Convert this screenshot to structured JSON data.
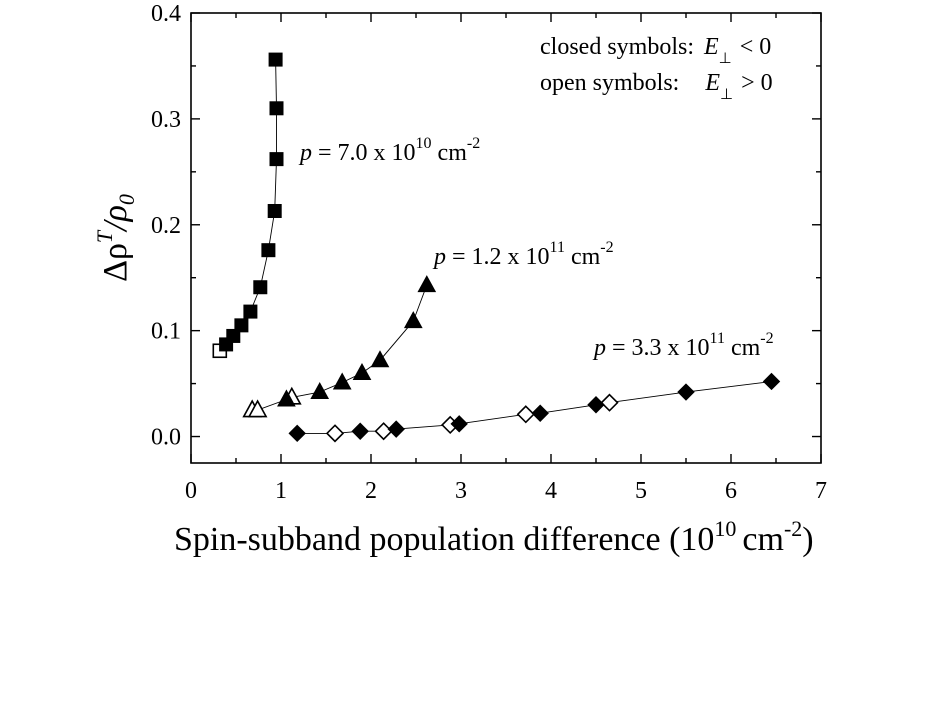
{
  "chart_data": {
    "type": "scatter",
    "xlabel": "Spin-subband population difference (10",
    "xlabel_exp": "10",
    "xlabel_unit": "cm",
    "xlabel_unit_exp": "-2",
    "xlabel_tail": ")",
    "ylabel_main": "Δρ",
    "ylabel_sup": "T",
    "ylabel_den": "/ρ",
    "ylabel_sub": "0",
    "xlim": [
      0,
      7
    ],
    "ylim": [
      -0.025,
      0.4
    ],
    "x_ticks": [
      0,
      1,
      2,
      3,
      4,
      5,
      6,
      7
    ],
    "x_tick_labels": [
      "0",
      "1",
      "2",
      "3",
      "4",
      "5",
      "6",
      "7"
    ],
    "y_ticks": [
      0.0,
      0.1,
      0.2,
      0.3,
      0.4
    ],
    "y_tick_labels": [
      "0.0",
      "0.1",
      "0.2",
      "0.3",
      "0.4"
    ],
    "legend": {
      "line1_prefix": "closed symbols:",
      "line1_symbol": "E",
      "line1_suffix": "< 0",
      "line2_prefix": "open symbols:",
      "line2_symbol": "E",
      "line2_suffix": "> 0",
      "perp": "⊥"
    },
    "series": [
      {
        "annotation": {
          "p": "p",
          "text": " = 7.0 x 10",
          "exp": "10",
          "unit": " cm",
          "unit_exp": "-2"
        },
        "marker": "square",
        "closed": [
          [
            0.39,
            0.087
          ],
          [
            0.47,
            0.095
          ],
          [
            0.56,
            0.105
          ],
          [
            0.66,
            0.118
          ],
          [
            0.77,
            0.141
          ],
          [
            0.86,
            0.176
          ],
          [
            0.93,
            0.213
          ],
          [
            0.95,
            0.262
          ],
          [
            0.95,
            0.31
          ],
          [
            0.94,
            0.356
          ]
        ],
        "open": [
          [
            0.32,
            0.081
          ]
        ],
        "line": [
          [
            0.32,
            0.081
          ],
          [
            0.39,
            0.087
          ],
          [
            0.47,
            0.095
          ],
          [
            0.56,
            0.105
          ],
          [
            0.66,
            0.118
          ],
          [
            0.77,
            0.141
          ],
          [
            0.86,
            0.176
          ],
          [
            0.93,
            0.213
          ],
          [
            0.95,
            0.262
          ],
          [
            0.95,
            0.31
          ],
          [
            0.94,
            0.356
          ]
        ]
      },
      {
        "annotation": {
          "p": "p",
          "text": " = 1.2 x 10",
          "exp": "11",
          "unit": " cm",
          "unit_exp": "-2"
        },
        "marker": "triangle",
        "closed": [
          [
            1.06,
            0.035
          ],
          [
            1.43,
            0.042
          ],
          [
            1.68,
            0.051
          ],
          [
            1.9,
            0.06
          ],
          [
            2.1,
            0.072
          ],
          [
            2.47,
            0.109
          ],
          [
            2.62,
            0.143
          ]
        ],
        "open": [
          [
            0.68,
            0.025
          ],
          [
            0.74,
            0.025
          ],
          [
            1.12,
            0.037
          ]
        ],
        "line": [
          [
            0.68,
            0.025
          ],
          [
            0.74,
            0.025
          ],
          [
            1.06,
            0.035
          ],
          [
            1.12,
            0.037
          ],
          [
            1.43,
            0.042
          ],
          [
            1.68,
            0.051
          ],
          [
            1.9,
            0.06
          ],
          [
            2.1,
            0.072
          ],
          [
            2.47,
            0.109
          ],
          [
            2.62,
            0.143
          ]
        ]
      },
      {
        "annotation": {
          "p": "p",
          "text": " = 3.3 x 10",
          "exp": "11",
          "unit": " cm",
          "unit_exp": "-2"
        },
        "marker": "diamond",
        "closed": [
          [
            1.18,
            0.003
          ],
          [
            1.88,
            0.005
          ],
          [
            2.28,
            0.007
          ],
          [
            2.98,
            0.012
          ],
          [
            3.88,
            0.022
          ],
          [
            4.5,
            0.03
          ],
          [
            5.5,
            0.042
          ],
          [
            6.45,
            0.052
          ]
        ],
        "open": [
          [
            1.6,
            0.003
          ],
          [
            2.14,
            0.005
          ],
          [
            2.88,
            0.011
          ],
          [
            3.72,
            0.021
          ],
          [
            4.65,
            0.032
          ]
        ],
        "line": [
          [
            1.18,
            0.003
          ],
          [
            1.6,
            0.003
          ],
          [
            1.88,
            0.005
          ],
          [
            2.14,
            0.005
          ],
          [
            2.28,
            0.007
          ],
          [
            2.88,
            0.011
          ],
          [
            2.98,
            0.012
          ],
          [
            3.72,
            0.021
          ],
          [
            3.88,
            0.022
          ],
          [
            4.5,
            0.03
          ],
          [
            4.65,
            0.032
          ],
          [
            5.5,
            0.042
          ],
          [
            6.45,
            0.052
          ]
        ]
      }
    ]
  }
}
